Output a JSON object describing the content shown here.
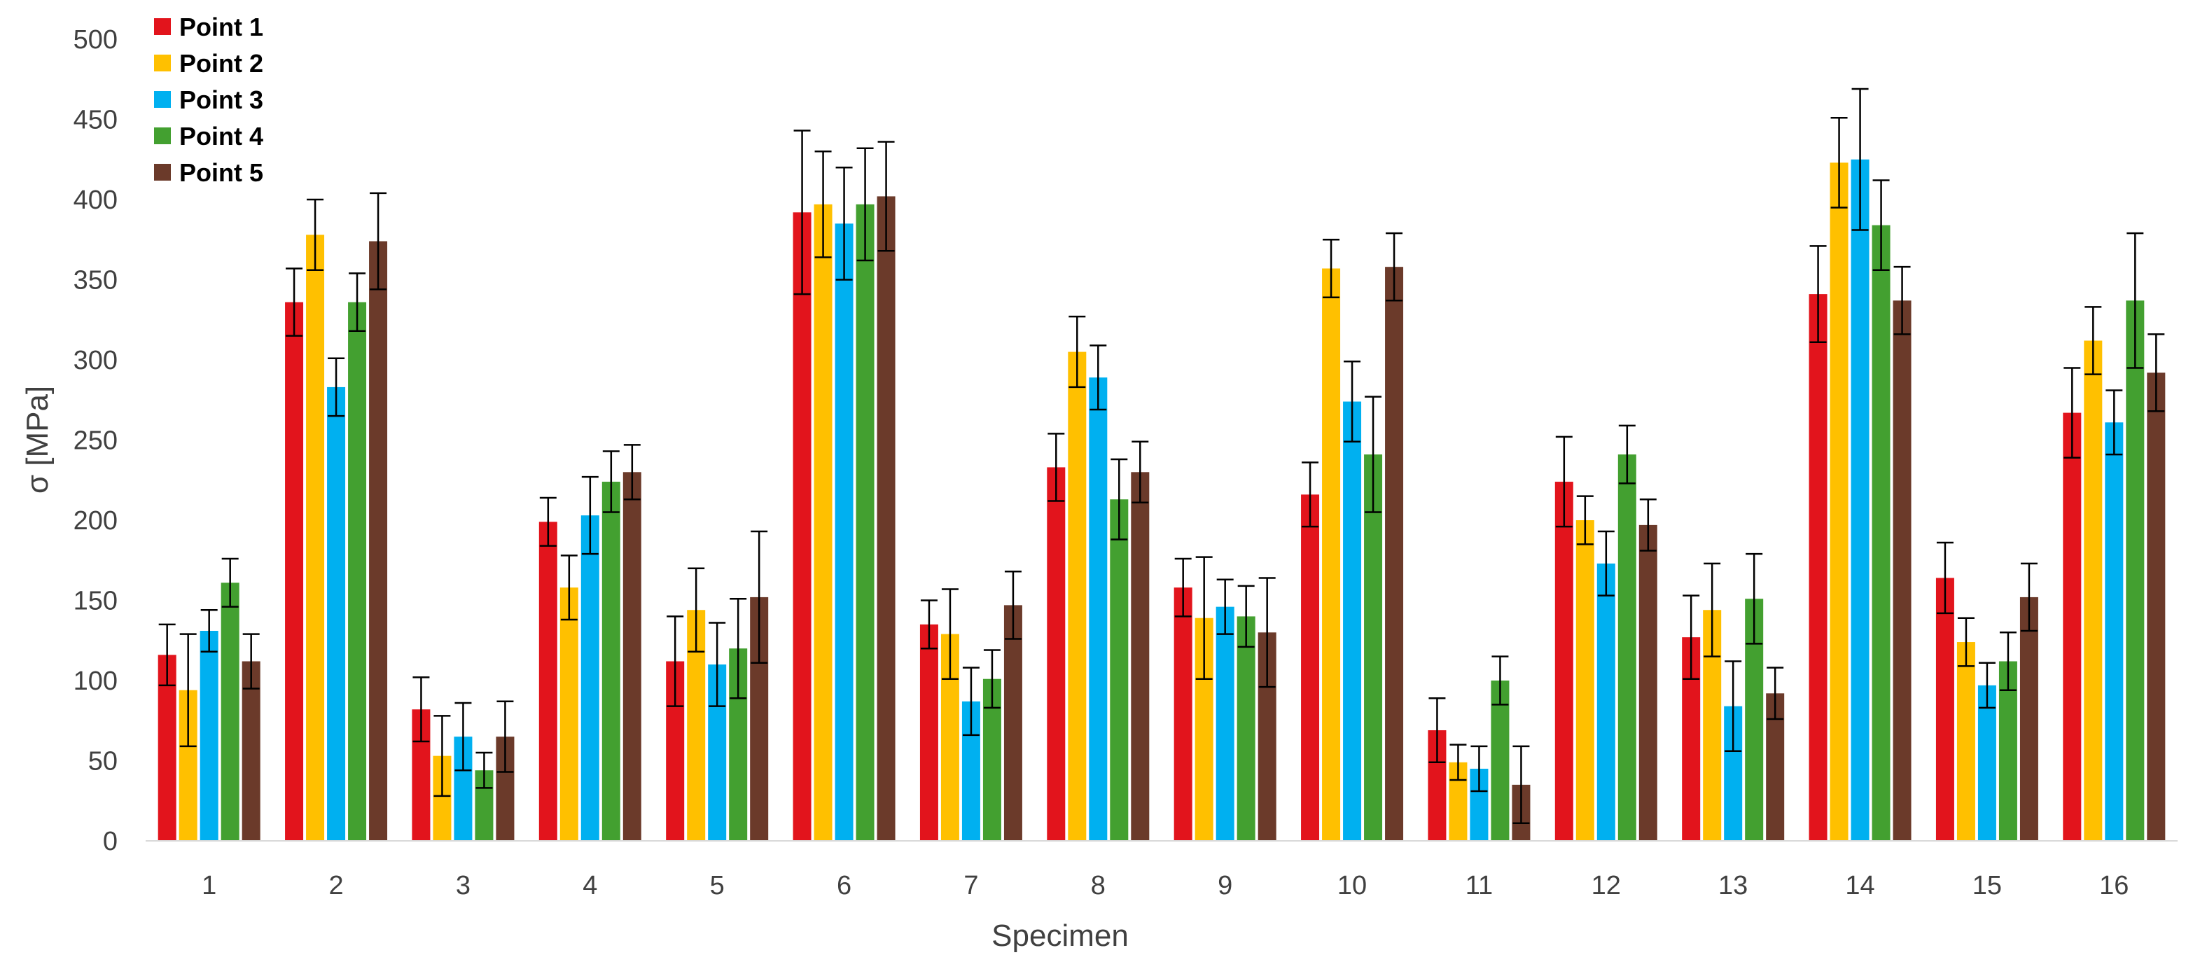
{
  "chart_data": {
    "type": "bar",
    "title": "",
    "xlabel": "Specimen",
    "ylabel": "σ [MPa]",
    "ylim": [
      0,
      500
    ],
    "yticks": [
      0,
      50,
      100,
      150,
      200,
      250,
      300,
      350,
      400,
      450,
      500
    ],
    "grid": false,
    "legend_position": "top-left",
    "categories": [
      "1",
      "2",
      "3",
      "4",
      "5",
      "6",
      "7",
      "8",
      "9",
      "10",
      "11",
      "12",
      "13",
      "14",
      "15",
      "16"
    ],
    "series": [
      {
        "name": "Point 1",
        "color": "#e2141c",
        "values": [
          116,
          336,
          82,
          199,
          112,
          392,
          135,
          233,
          158,
          216,
          69,
          224,
          127,
          341,
          164,
          267
        ],
        "errors": [
          19,
          21,
          20,
          15,
          28,
          51,
          15,
          21,
          18,
          20,
          20,
          28,
          26,
          30,
          22,
          28
        ]
      },
      {
        "name": "Point 2",
        "color": "#ffc000",
        "values": [
          94,
          378,
          53,
          158,
          144,
          397,
          129,
          305,
          139,
          357,
          49,
          200,
          144,
          423,
          124,
          312
        ],
        "errors": [
          35,
          22,
          25,
          20,
          26,
          33,
          28,
          22,
          38,
          18,
          11,
          15,
          29,
          28,
          15,
          21
        ]
      },
      {
        "name": "Point 3",
        "color": "#00b0f0",
        "values": [
          131,
          283,
          65,
          203,
          110,
          385,
          87,
          289,
          146,
          274,
          45,
          173,
          84,
          425,
          97,
          261
        ],
        "errors": [
          13,
          18,
          21,
          24,
          26,
          35,
          21,
          20,
          17,
          25,
          14,
          20,
          28,
          44,
          14,
          20
        ]
      },
      {
        "name": "Point 4",
        "color": "#43a030",
        "values": [
          161,
          336,
          44,
          224,
          120,
          397,
          101,
          213,
          140,
          241,
          100,
          241,
          151,
          384,
          112,
          337
        ],
        "errors": [
          15,
          18,
          11,
          19,
          31,
          35,
          18,
          25,
          19,
          36,
          15,
          18,
          28,
          28,
          18,
          42
        ]
      },
      {
        "name": "Point 5",
        "color": "#6b3a2a",
        "values": [
          112,
          374,
          65,
          230,
          152,
          402,
          147,
          230,
          130,
          358,
          35,
          197,
          92,
          337,
          152,
          292
        ],
        "errors": [
          17,
          30,
          22,
          17,
          41,
          34,
          21,
          19,
          34,
          21,
          24,
          16,
          16,
          21,
          21,
          24
        ]
      }
    ]
  }
}
